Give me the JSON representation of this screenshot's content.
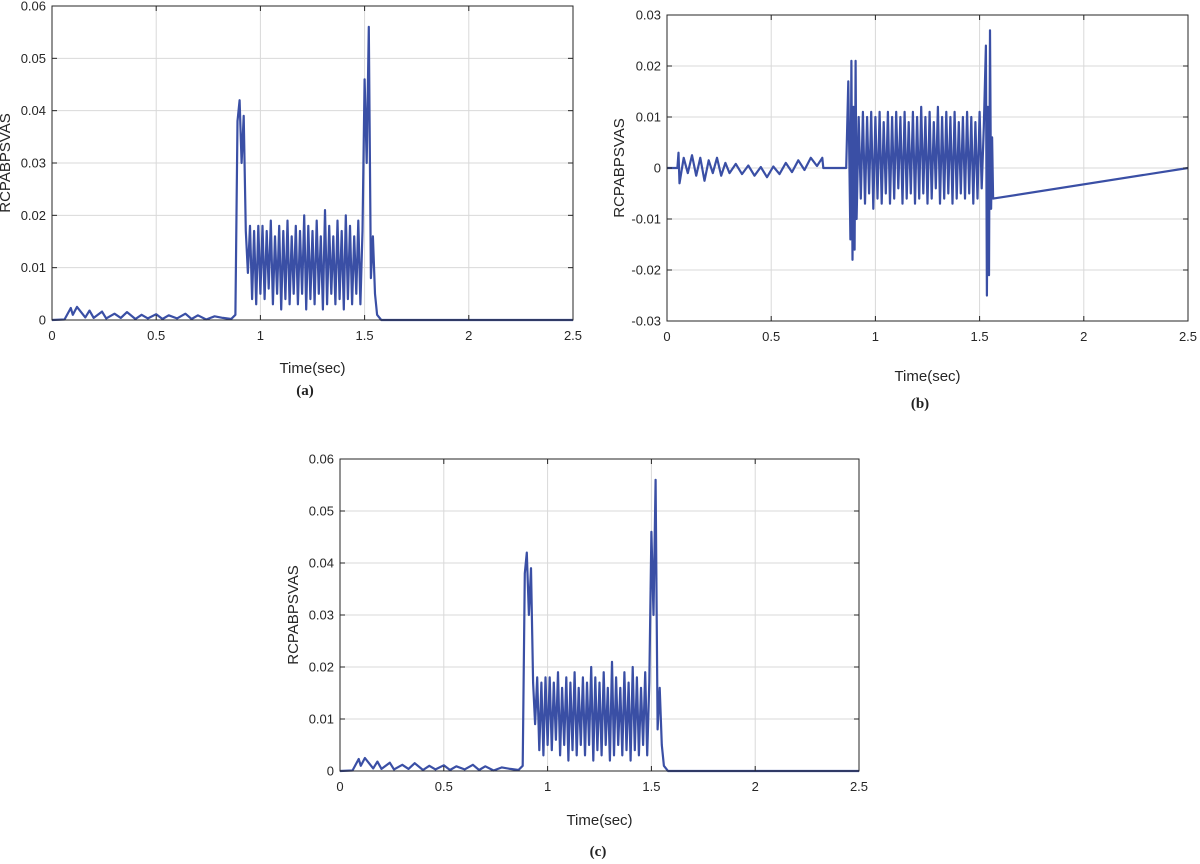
{
  "style": {
    "line_color": "#3a4fa5",
    "frame_color": "#262626",
    "grid_color": "#d9d9d9"
  },
  "chart_data": [
    {
      "type": "line",
      "caption": "(a)",
      "xlabel": "Time(sec)",
      "ylabel": "RCPABPSVAS",
      "xlim": [
        0,
        2.5
      ],
      "ylim": [
        0,
        0.06
      ],
      "xticks": [
        0,
        0.5,
        1,
        1.5,
        2,
        2.5
      ],
      "xtick_labels": [
        "0",
        "0.5",
        "1",
        "1.5",
        "2",
        "2.5"
      ],
      "yticks": [
        0,
        0.01,
        0.02,
        0.03,
        0.04,
        0.05,
        0.06
      ],
      "ytick_labels": [
        "0",
        "0.01",
        "0.02",
        "0.03",
        "0.04",
        "0.05",
        "0.06"
      ],
      "grid": true,
      "series": [
        {
          "x": [
            0,
            0.06,
            0.09,
            0.1,
            0.12,
            0.16,
            0.18,
            0.2,
            0.24,
            0.26,
            0.3,
            0.33,
            0.36,
            0.4,
            0.43,
            0.46,
            0.5,
            0.53,
            0.56,
            0.6,
            0.64,
            0.67,
            0.7,
            0.74,
            0.78,
            0.82,
            0.86,
            0.88,
            0.89,
            0.9,
            0.91,
            0.92,
            0.93,
            0.94,
            0.95,
            0.96,
            0.97,
            0.98,
            0.99,
            1.0,
            1.01,
            1.02,
            1.03,
            1.04,
            1.05,
            1.06,
            1.07,
            1.08,
            1.09,
            1.1,
            1.11,
            1.12,
            1.13,
            1.14,
            1.15,
            1.16,
            1.17,
            1.18,
            1.19,
            1.2,
            1.21,
            1.22,
            1.23,
            1.24,
            1.25,
            1.26,
            1.27,
            1.28,
            1.29,
            1.3,
            1.31,
            1.32,
            1.33,
            1.34,
            1.35,
            1.36,
            1.37,
            1.38,
            1.39,
            1.4,
            1.41,
            1.42,
            1.43,
            1.44,
            1.45,
            1.46,
            1.47,
            1.48,
            1.49,
            1.5,
            1.51,
            1.52,
            1.53,
            1.54,
            1.55,
            1.56,
            1.58,
            2.0,
            2.5
          ],
          "y": [
            0,
            0.0001,
            0.0023,
            0.001,
            0.0025,
            0.0005,
            0.0018,
            0.0004,
            0.0016,
            0.0003,
            0.0012,
            0.0004,
            0.0015,
            0.0002,
            0.001,
            0.0003,
            0.0011,
            0.0002,
            0.0009,
            0.0003,
            0.0012,
            0.0002,
            0.0009,
            0.0001,
            0.0007,
            0.0004,
            0.0002,
            0.001,
            0.038,
            0.042,
            0.03,
            0.039,
            0.017,
            0.009,
            0.018,
            0.004,
            0.017,
            0.003,
            0.018,
            0.005,
            0.018,
            0.004,
            0.017,
            0.006,
            0.019,
            0.003,
            0.016,
            0.005,
            0.018,
            0.002,
            0.017,
            0.004,
            0.019,
            0.003,
            0.016,
            0.005,
            0.018,
            0.003,
            0.017,
            0.005,
            0.02,
            0.002,
            0.018,
            0.004,
            0.017,
            0.003,
            0.019,
            0.005,
            0.016,
            0.002,
            0.021,
            0.003,
            0.018,
            0.005,
            0.016,
            0.003,
            0.019,
            0.004,
            0.017,
            0.002,
            0.02,
            0.004,
            0.018,
            0.003,
            0.016,
            0.005,
            0.019,
            0.003,
            0.017,
            0.046,
            0.03,
            0.056,
            0.008,
            0.016,
            0.005,
            0.001,
            0,
            0,
            0
          ]
        }
      ]
    },
    {
      "type": "line",
      "caption": "(b)",
      "xlabel": "Time(sec)",
      "ylabel": "RCPABPSVAS",
      "xlim": [
        0,
        2.5
      ],
      "ylim": [
        -0.03,
        0.03
      ],
      "xticks": [
        0,
        0.5,
        1,
        1.5,
        2,
        2.5
      ],
      "xtick_labels": [
        "0",
        "0.5",
        "1",
        "1.5",
        "2",
        "2.5"
      ],
      "yticks": [
        -0.03,
        -0.02,
        -0.01,
        0,
        0.01,
        0.02,
        0.03
      ],
      "ytick_labels": [
        "-0.03",
        "-0.02",
        "-0.01",
        "0",
        "0.01",
        "0.02",
        "0.03"
      ],
      "grid": true,
      "series": [
        {
          "x": [
            0,
            0.05,
            0.055,
            0.06,
            0.08,
            0.1,
            0.12,
            0.14,
            0.16,
            0.18,
            0.2,
            0.22,
            0.24,
            0.26,
            0.28,
            0.3,
            0.33,
            0.36,
            0.39,
            0.42,
            0.45,
            0.48,
            0.51,
            0.54,
            0.57,
            0.6,
            0.63,
            0.66,
            0.69,
            0.72,
            0.745,
            0.75,
            0.86,
            0.87,
            0.88,
            0.885,
            0.89,
            0.895,
            0.9,
            0.905,
            0.91,
            0.92,
            0.93,
            0.94,
            0.95,
            0.96,
            0.97,
            0.98,
            0.99,
            1.0,
            1.01,
            1.02,
            1.03,
            1.04,
            1.05,
            1.06,
            1.07,
            1.08,
            1.09,
            1.1,
            1.11,
            1.12,
            1.13,
            1.14,
            1.15,
            1.16,
            1.17,
            1.18,
            1.19,
            1.2,
            1.21,
            1.22,
            1.23,
            1.24,
            1.25,
            1.26,
            1.27,
            1.28,
            1.29,
            1.3,
            1.31,
            1.32,
            1.33,
            1.34,
            1.35,
            1.36,
            1.37,
            1.38,
            1.39,
            1.4,
            1.41,
            1.42,
            1.43,
            1.44,
            1.45,
            1.46,
            1.47,
            1.48,
            1.49,
            1.5,
            1.51,
            1.52,
            1.53,
            1.535,
            1.54,
            1.545,
            1.55,
            1.555,
            1.56,
            1.565,
            2.5
          ],
          "y": [
            0,
            0,
            0.003,
            -0.003,
            0.002,
            -0.001,
            0.0025,
            -0.0015,
            0.002,
            -0.0025,
            0.0015,
            -0.001,
            0.002,
            -0.0015,
            0.001,
            -0.001,
            0.0008,
            -0.0012,
            0.0005,
            -0.0015,
            0.0002,
            -0.0018,
            0.0003,
            -0.0012,
            0.001,
            -0.0008,
            0.0015,
            -0.0004,
            0.002,
            0.0004,
            0.002,
            0,
            0,
            0.017,
            -0.014,
            0.021,
            -0.018,
            0.012,
            -0.016,
            0.021,
            -0.01,
            0.01,
            -0.006,
            0.011,
            -0.007,
            0.01,
            -0.005,
            0.011,
            -0.008,
            0.01,
            -0.006,
            0.011,
            -0.007,
            0.009,
            -0.005,
            0.011,
            -0.007,
            0.01,
            -0.006,
            0.011,
            -0.004,
            0.01,
            -0.007,
            0.011,
            -0.006,
            0.009,
            -0.005,
            0.011,
            -0.007,
            0.01,
            -0.006,
            0.012,
            -0.005,
            0.01,
            -0.007,
            0.011,
            -0.006,
            0.009,
            -0.004,
            0.012,
            -0.007,
            0.01,
            -0.006,
            0.011,
            -0.005,
            0.01,
            -0.007,
            0.011,
            -0.006,
            0.009,
            -0.005,
            0.01,
            -0.006,
            0.011,
            -0.005,
            0.01,
            -0.007,
            0.009,
            -0.006,
            0.011,
            -0.004,
            0.008,
            0.024,
            -0.025,
            0.012,
            -0.021,
            0.027,
            -0.008,
            0.006,
            -0.006,
            0
          ]
        }
      ]
    },
    {
      "type": "line",
      "caption": "(c)",
      "xlabel": "Time(sec)",
      "ylabel": "RCPABPSVAS",
      "xlim": [
        0,
        2.5
      ],
      "ylim": [
        0,
        0.06
      ],
      "xticks": [
        0,
        0.5,
        1,
        1.5,
        2,
        2.5
      ],
      "xtick_labels": [
        "0",
        "0.5",
        "1",
        "1.5",
        "2",
        "2.5"
      ],
      "yticks": [
        0,
        0.01,
        0.02,
        0.03,
        0.04,
        0.05,
        0.06
      ],
      "ytick_labels": [
        "0",
        "0.01",
        "0.02",
        "0.03",
        "0.04",
        "0.05",
        "0.06"
      ],
      "grid": true,
      "series": [
        {
          "x": [
            0,
            0.06,
            0.09,
            0.1,
            0.12,
            0.16,
            0.18,
            0.2,
            0.24,
            0.26,
            0.3,
            0.33,
            0.36,
            0.4,
            0.43,
            0.46,
            0.5,
            0.53,
            0.56,
            0.6,
            0.64,
            0.67,
            0.7,
            0.74,
            0.78,
            0.82,
            0.86,
            0.88,
            0.89,
            0.9,
            0.91,
            0.92,
            0.93,
            0.94,
            0.95,
            0.96,
            0.97,
            0.98,
            0.99,
            1.0,
            1.01,
            1.02,
            1.03,
            1.04,
            1.05,
            1.06,
            1.07,
            1.08,
            1.09,
            1.1,
            1.11,
            1.12,
            1.13,
            1.14,
            1.15,
            1.16,
            1.17,
            1.18,
            1.19,
            1.2,
            1.21,
            1.22,
            1.23,
            1.24,
            1.25,
            1.26,
            1.27,
            1.28,
            1.29,
            1.3,
            1.31,
            1.32,
            1.33,
            1.34,
            1.35,
            1.36,
            1.37,
            1.38,
            1.39,
            1.4,
            1.41,
            1.42,
            1.43,
            1.44,
            1.45,
            1.46,
            1.47,
            1.48,
            1.49,
            1.5,
            1.51,
            1.52,
            1.53,
            1.54,
            1.55,
            1.56,
            1.58,
            2.0,
            2.5
          ],
          "y": [
            0,
            0.0001,
            0.0023,
            0.001,
            0.0025,
            0.0005,
            0.0018,
            0.0004,
            0.0016,
            0.0003,
            0.0012,
            0.0004,
            0.0015,
            0.0002,
            0.001,
            0.0003,
            0.0011,
            0.0002,
            0.0009,
            0.0003,
            0.0012,
            0.0002,
            0.0009,
            0.0001,
            0.0007,
            0.0004,
            0.0002,
            0.001,
            0.038,
            0.042,
            0.03,
            0.039,
            0.017,
            0.009,
            0.018,
            0.004,
            0.017,
            0.003,
            0.018,
            0.005,
            0.018,
            0.004,
            0.017,
            0.006,
            0.019,
            0.003,
            0.016,
            0.005,
            0.018,
            0.002,
            0.017,
            0.004,
            0.019,
            0.003,
            0.016,
            0.005,
            0.018,
            0.003,
            0.017,
            0.005,
            0.02,
            0.002,
            0.018,
            0.004,
            0.017,
            0.003,
            0.019,
            0.005,
            0.016,
            0.002,
            0.021,
            0.003,
            0.018,
            0.005,
            0.016,
            0.003,
            0.019,
            0.004,
            0.017,
            0.002,
            0.02,
            0.004,
            0.018,
            0.003,
            0.016,
            0.005,
            0.019,
            0.003,
            0.017,
            0.046,
            0.03,
            0.056,
            0.008,
            0.016,
            0.005,
            0.001,
            0,
            0,
            0
          ]
        }
      ]
    }
  ]
}
